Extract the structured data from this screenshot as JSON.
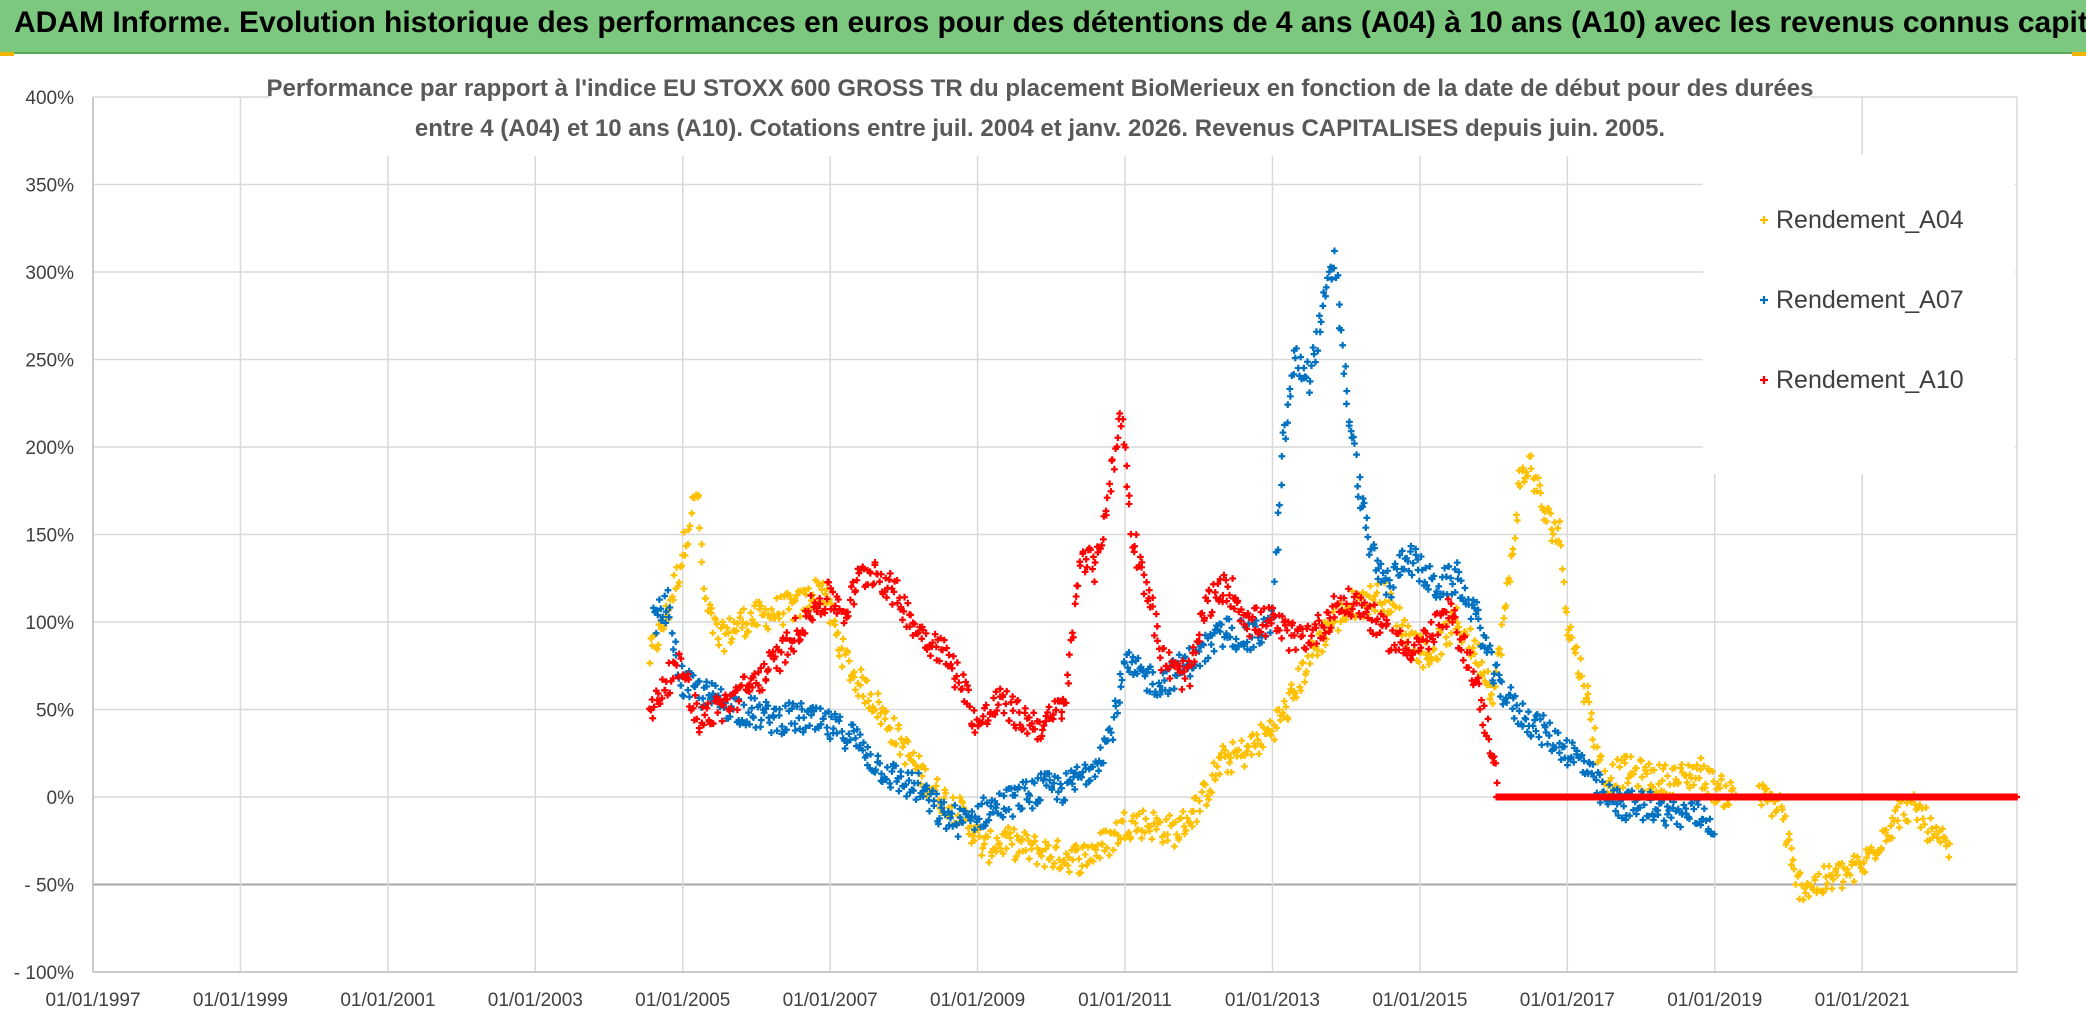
{
  "banner": {
    "title": "ADAM Informe. Evolution historique des performances en euros pour des détentions de 4 ans (A04) à 10 ans (A10) avec les revenus connus capitalisés"
  },
  "colors": {
    "banner_bg": "#7dc87f",
    "accent": "#f0b400",
    "a04": "#ffc000",
    "a07": "#0070c0",
    "a10": "#ff0000",
    "grid": "#d9d9d9"
  },
  "chart_data": {
    "type": "scatter",
    "title_lines": [
      "Performance par rapport à l'indice EU STOXX 600 GROSS TR  du placement BioMerieux en fonction de la date de début pour des durées",
      "entre 4 (A04) et 10 ans (A10). Cotations entre juil. 2004 et janv. 2026. Revenus CAPITALISES depuis juin. 2005."
    ],
    "xlabel": "",
    "ylabel": "",
    "x_tick_labels": [
      "01/01/1997",
      "01/01/1999",
      "01/01/2001",
      "01/01/2003",
      "01/01/2005",
      "01/01/2007",
      "01/01/2009",
      "01/01/2011",
      "01/01/2013",
      "01/01/2015",
      "01/01/2017",
      "01/01/2019",
      "01/01/2021"
    ],
    "x_tick_years": [
      1997,
      1999,
      2001,
      2003,
      2005,
      2007,
      2009,
      2011,
      2013,
      2015,
      2017,
      2019,
      2021
    ],
    "xlim": [
      1997,
      2023.1
    ],
    "y_tick_labels": [
      "400%",
      "350%",
      "300%",
      "250%",
      "200%",
      "150%",
      "100%",
      "50%",
      "0%",
      "- 50%",
      "- 100%"
    ],
    "y_tick_values": [
      400,
      350,
      300,
      250,
      200,
      150,
      100,
      50,
      0,
      -50,
      -100
    ],
    "ylim": [
      -100,
      400
    ],
    "grid": true,
    "legend_position": "top-right",
    "marker": "+",
    "series": [
      {
        "name": "Rendement_A04",
        "color": "#ffc000",
        "keypoints": [
          [
            2004.55,
            80
          ],
          [
            2004.75,
            100
          ],
          [
            2004.95,
            130
          ],
          [
            2005.1,
            160
          ],
          [
            2005.2,
            175
          ],
          [
            2005.3,
            110
          ],
          [
            2005.5,
            90
          ],
          [
            2005.8,
            100
          ],
          [
            2006.2,
            105
          ],
          [
            2006.6,
            110
          ],
          [
            2006.9,
            120
          ],
          [
            2007.1,
            90
          ],
          [
            2007.3,
            70
          ],
          [
            2007.6,
            55
          ],
          [
            2007.9,
            35
          ],
          [
            2008.2,
            15
          ],
          [
            2008.5,
            0
          ],
          [
            2008.8,
            -10
          ],
          [
            2009.1,
            -30
          ],
          [
            2009.3,
            -25
          ],
          [
            2009.6,
            -28
          ],
          [
            2010.0,
            -33
          ],
          [
            2010.4,
            -35
          ],
          [
            2010.8,
            -25
          ],
          [
            2011.0,
            -15
          ],
          [
            2011.3,
            -15
          ],
          [
            2011.7,
            -20
          ],
          [
            2012.0,
            -5
          ],
          [
            2012.3,
            20
          ],
          [
            2012.6,
            25
          ],
          [
            2012.9,
            35
          ],
          [
            2013.2,
            50
          ],
          [
            2013.5,
            80
          ],
          [
            2013.8,
            100
          ],
          [
            2014.1,
            110
          ],
          [
            2014.5,
            115
          ],
          [
            2014.8,
            95
          ],
          [
            2015.1,
            80
          ],
          [
            2015.5,
            100
          ],
          [
            2015.8,
            80
          ],
          [
            2016.0,
            60
          ],
          [
            2016.2,
            120
          ],
          [
            2016.35,
            180
          ],
          [
            2016.5,
            190
          ],
          [
            2016.7,
            160
          ],
          [
            2016.9,
            150
          ],
          [
            2017.0,
            100
          ],
          [
            2017.2,
            70
          ],
          [
            2017.5,
            10
          ],
          [
            2017.8,
            15
          ],
          [
            2018.2,
            10
          ],
          [
            2018.5,
            10
          ],
          [
            2018.8,
            15
          ],
          [
            2019.0,
            5
          ],
          [
            2019.3,
            0
          ],
          [
            2019.6,
            0
          ],
          [
            2019.9,
            -5
          ],
          [
            2020.1,
            -50
          ],
          [
            2020.4,
            -50
          ],
          [
            2020.7,
            -45
          ],
          [
            2021.0,
            -40
          ],
          [
            2021.3,
            -20
          ],
          [
            2021.6,
            -5
          ],
          [
            2021.8,
            -10
          ],
          [
            2022.0,
            -25
          ],
          [
            2022.2,
            -30
          ]
        ]
      },
      {
        "name": "Rendement_A07",
        "color": "#0070c0",
        "keypoints": [
          [
            2004.6,
            100
          ],
          [
            2004.8,
            110
          ],
          [
            2004.9,
            80
          ],
          [
            2005.0,
            65
          ],
          [
            2005.2,
            60
          ],
          [
            2005.5,
            55
          ],
          [
            2005.8,
            50
          ],
          [
            2006.2,
            45
          ],
          [
            2006.6,
            45
          ],
          [
            2007.0,
            40
          ],
          [
            2007.3,
            35
          ],
          [
            2007.6,
            20
          ],
          [
            2007.9,
            10
          ],
          [
            2008.2,
            5
          ],
          [
            2008.5,
            -10
          ],
          [
            2008.8,
            -15
          ],
          [
            2009.0,
            -10
          ],
          [
            2009.3,
            -5
          ],
          [
            2009.6,
            0
          ],
          [
            2009.9,
            5
          ],
          [
            2010.2,
            5
          ],
          [
            2010.5,
            15
          ],
          [
            2010.8,
            35
          ],
          [
            2011.0,
            75
          ],
          [
            2011.2,
            70
          ],
          [
            2011.5,
            65
          ],
          [
            2011.8,
            75
          ],
          [
            2012.1,
            85
          ],
          [
            2012.4,
            95
          ],
          [
            2012.7,
            90
          ],
          [
            2013.0,
            100
          ],
          [
            2013.15,
            200
          ],
          [
            2013.3,
            250
          ],
          [
            2013.5,
            240
          ],
          [
            2013.7,
            280
          ],
          [
            2013.85,
            310
          ],
          [
            2014.0,
            230
          ],
          [
            2014.2,
            170
          ],
          [
            2014.4,
            130
          ],
          [
            2014.6,
            120
          ],
          [
            2014.8,
            140
          ],
          [
            2015.0,
            130
          ],
          [
            2015.2,
            120
          ],
          [
            2015.5,
            125
          ],
          [
            2015.8,
            100
          ],
          [
            2016.0,
            70
          ],
          [
            2016.3,
            50
          ],
          [
            2016.6,
            40
          ],
          [
            2016.9,
            30
          ],
          [
            2017.2,
            20
          ],
          [
            2017.5,
            0
          ],
          [
            2017.8,
            -5
          ],
          [
            2018.2,
            -5
          ],
          [
            2018.5,
            -10
          ],
          [
            2018.8,
            -10
          ],
          [
            2019.0,
            -15
          ]
        ]
      },
      {
        "name": "Rendement_A10",
        "color": "#ff0000",
        "keypoints": [
          [
            2004.55,
            45
          ],
          [
            2004.75,
            65
          ],
          [
            2005.0,
            75
          ],
          [
            2005.2,
            45
          ],
          [
            2005.5,
            50
          ],
          [
            2005.8,
            60
          ],
          [
            2006.1,
            70
          ],
          [
            2006.4,
            85
          ],
          [
            2006.7,
            105
          ],
          [
            2007.0,
            115
          ],
          [
            2007.2,
            105
          ],
          [
            2007.4,
            125
          ],
          [
            2007.6,
            130
          ],
          [
            2007.9,
            115
          ],
          [
            2008.2,
            95
          ],
          [
            2008.5,
            85
          ],
          [
            2008.8,
            65
          ],
          [
            2009.0,
            40
          ],
          [
            2009.3,
            55
          ],
          [
            2009.6,
            45
          ],
          [
            2009.9,
            40
          ],
          [
            2010.2,
            55
          ],
          [
            2010.4,
            140
          ],
          [
            2010.6,
            130
          ],
          [
            2010.8,
            180
          ],
          [
            2010.95,
            220
          ],
          [
            2011.1,
            150
          ],
          [
            2011.3,
            120
          ],
          [
            2011.5,
            80
          ],
          [
            2011.7,
            70
          ],
          [
            2011.9,
            70
          ],
          [
            2012.1,
            110
          ],
          [
            2012.4,
            120
          ],
          [
            2012.7,
            100
          ],
          [
            2013.0,
            100
          ],
          [
            2013.3,
            90
          ],
          [
            2013.6,
            95
          ],
          [
            2013.9,
            110
          ],
          [
            2014.2,
            110
          ],
          [
            2014.5,
            95
          ],
          [
            2014.8,
            85
          ],
          [
            2015.1,
            90
          ],
          [
            2015.4,
            105
          ],
          [
            2015.7,
            75
          ],
          [
            2015.9,
            40
          ],
          [
            2016.0,
            25
          ],
          [
            2016.05,
            0
          ],
          [
            2023.1,
            0
          ]
        ]
      }
    ]
  }
}
